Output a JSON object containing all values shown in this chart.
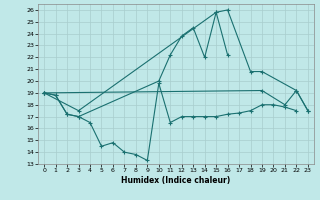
{
  "xlabel": "Humidex (Indice chaleur)",
  "xlim": [
    -0.5,
    23.5
  ],
  "ylim": [
    13,
    26.5
  ],
  "yticks": [
    13,
    14,
    15,
    16,
    17,
    18,
    19,
    20,
    21,
    22,
    23,
    24,
    25,
    26
  ],
  "xticks": [
    0,
    1,
    2,
    3,
    4,
    5,
    6,
    7,
    8,
    9,
    10,
    11,
    12,
    13,
    14,
    15,
    16,
    17,
    18,
    19,
    20,
    21,
    22,
    23
  ],
  "background_color": "#c0e8e8",
  "line_color": "#1a7070",
  "grid_color": "#a8cece",
  "line_data": [
    {
      "x": [
        0,
        1,
        2,
        3,
        4,
        5,
        6,
        7,
        8,
        9,
        10,
        11,
        12,
        13,
        14,
        15,
        16,
        17,
        18,
        19,
        20,
        21,
        22
      ],
      "y": [
        19.0,
        18.8,
        17.2,
        17.0,
        16.5,
        14.5,
        14.8,
        14.0,
        13.8,
        13.3,
        19.8,
        16.5,
        17.0,
        17.0,
        17.0,
        17.0,
        17.2,
        17.3,
        17.5,
        18.0,
        18.0,
        17.8,
        17.5
      ]
    },
    {
      "x": [
        0,
        1,
        2,
        3,
        10,
        11,
        12,
        13,
        14,
        15,
        16
      ],
      "y": [
        19.0,
        18.8,
        17.2,
        17.0,
        20.0,
        22.2,
        23.8,
        24.5,
        22.0,
        25.8,
        22.2
      ]
    },
    {
      "x": [
        0,
        3,
        15,
        16,
        18,
        19,
        22,
        23
      ],
      "y": [
        19.0,
        17.5,
        25.8,
        26.0,
        20.8,
        20.8,
        19.2,
        17.5
      ]
    },
    {
      "x": [
        0,
        19,
        21,
        22,
        23
      ],
      "y": [
        19.0,
        19.2,
        18.0,
        19.2,
        17.5
      ]
    }
  ]
}
